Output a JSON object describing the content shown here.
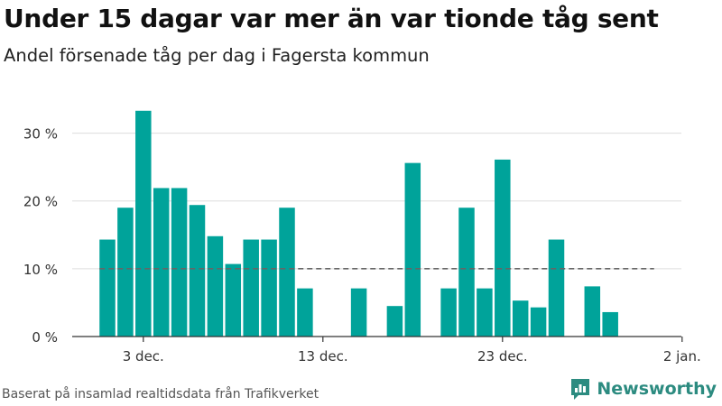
{
  "title": "Under 15 dagar var mer än var tionde tåg sent",
  "subtitle": "Andel försenade tåg per dag i Fagersta kommun",
  "source": "Baserat på insamlad realtidsdata från Trafikverket",
  "brand": {
    "name": "Newsworthy",
    "icon": "newsworthy-logo-icon",
    "color": "#2c8b80"
  },
  "colors": {
    "bar": "#00a39a",
    "grid": "#dddddd",
    "reference_line": "#666666",
    "axis": "#333333"
  },
  "chart_data": {
    "type": "bar",
    "x": [
      "2020-12-01",
      "2020-12-02",
      "2020-12-03",
      "2020-12-04",
      "2020-12-05",
      "2020-12-06",
      "2020-12-07",
      "2020-12-08",
      "2020-12-09",
      "2020-12-10",
      "2020-12-11",
      "2020-12-12",
      "2020-12-13",
      "2020-12-14",
      "2020-12-15",
      "2020-12-16",
      "2020-12-17",
      "2020-12-18",
      "2020-12-19",
      "2020-12-20",
      "2020-12-21",
      "2020-12-22",
      "2020-12-23",
      "2020-12-24",
      "2020-12-25",
      "2020-12-26",
      "2020-12-27",
      "2020-12-28",
      "2020-12-29",
      "2020-12-30",
      "2020-12-31",
      "2021-01-01",
      "2021-01-02"
    ],
    "values": [
      14.3,
      19.0,
      33.3,
      21.9,
      21.9,
      19.4,
      14.8,
      10.7,
      14.3,
      14.3,
      19.0,
      7.1,
      null,
      null,
      7.1,
      null,
      4.5,
      25.6,
      null,
      7.1,
      19.0,
      7.1,
      26.1,
      5.3,
      4.3,
      14.3,
      null,
      7.4,
      3.6,
      null,
      null,
      null,
      null
    ],
    "ylim": [
      0,
      35
    ],
    "yticks": [
      0,
      10,
      20,
      30
    ],
    "ytick_labels": [
      "0 %",
      "10 %",
      "20 %",
      "30 %"
    ],
    "xticks": [
      "2020-12-03",
      "2020-12-13",
      "2020-12-23",
      "2021-01-02"
    ],
    "xtick_labels": [
      "3 dec.",
      "13 dec.",
      "23 dec.",
      "2 jan."
    ],
    "reference_line": {
      "value": 10,
      "style": "dashed"
    },
    "grid": true,
    "legend": false
  }
}
